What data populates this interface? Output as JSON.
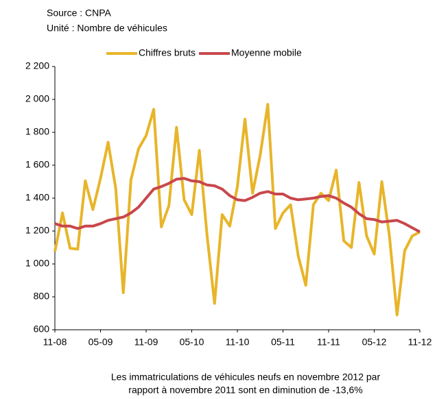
{
  "chart_data": {
    "type": "line",
    "source": "Source : CNPA",
    "unit": "Unité : Nombre de véhicules",
    "note": [
      "Les immatriculations de véhicules neufs en novembre 2012 par",
      "rapport à novembre 2011 sont en diminution de -13,6%"
    ],
    "categories": [
      "11-08",
      null,
      null,
      null,
      null,
      null,
      "05-09",
      null,
      null,
      null,
      null,
      null,
      "11-09",
      null,
      null,
      null,
      null,
      null,
      "05-10",
      null,
      null,
      null,
      null,
      null,
      "11-10",
      null,
      null,
      null,
      null,
      null,
      "05-11",
      null,
      null,
      null,
      null,
      null,
      "11-11",
      null,
      null,
      null,
      null,
      null,
      "05-12",
      null,
      null,
      null,
      null,
      null,
      "11-12"
    ],
    "series": [
      {
        "name": "Chiffres bruts",
        "color": "#e8b52a",
        "values": [
          1075,
          1310,
          1095,
          1090,
          1505,
          1330,
          1520,
          1740,
          1460,
          825,
          1510,
          1700,
          1780,
          1940,
          1225,
          1355,
          1830,
          1390,
          1300,
          1690,
          1180,
          760,
          1300,
          1230,
          1470,
          1880,
          1430,
          1660,
          1970,
          1215,
          1310,
          1360,
          1050,
          870,
          1360,
          1430,
          1385,
          1570,
          1140,
          1100,
          1495,
          1170,
          1060,
          1500,
          1170,
          690,
          1080,
          1170,
          1195
        ]
      },
      {
        "name": "Moyenne mobile",
        "color": "#c8474b",
        "values": [
          1245,
          1230,
          1230,
          1215,
          1230,
          1230,
          1245,
          1265,
          1275,
          1285,
          1310,
          1345,
          1400,
          1455,
          1470,
          1490,
          1515,
          1520,
          1505,
          1500,
          1480,
          1475,
          1455,
          1415,
          1390,
          1385,
          1405,
          1430,
          1440,
          1425,
          1425,
          1400,
          1390,
          1395,
          1400,
          1410,
          1415,
          1400,
          1370,
          1345,
          1305,
          1275,
          1270,
          1255,
          1260,
          1265,
          1245,
          1220,
          1195
        ]
      }
    ],
    "ylim": [
      600,
      2200
    ],
    "yticks": [
      {
        "value": 600,
        "label": "600"
      },
      {
        "value": 800,
        "label": "800"
      },
      {
        "value": 1000,
        "label": "1 000"
      },
      {
        "value": 1200,
        "label": "1 200"
      },
      {
        "value": 1400,
        "label": "1 400"
      },
      {
        "value": 1600,
        "label": "1 600"
      },
      {
        "value": 1800,
        "label": "1 800"
      },
      {
        "value": 2000,
        "label": "2 000"
      },
      {
        "value": 2200,
        "label": "2 200"
      }
    ],
    "legend": "top"
  }
}
